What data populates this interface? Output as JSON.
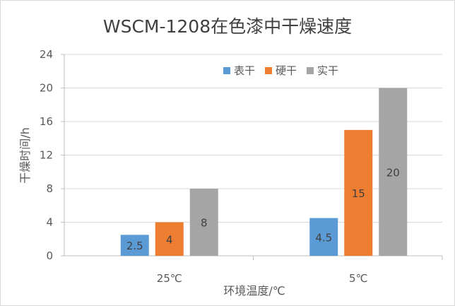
{
  "chart_data": {
    "type": "bar",
    "title": "WSCM-1208在色漆中干燥速度",
    "xlabel": "环境温度/℃",
    "ylabel": "干燥时间/h",
    "categories": [
      "25℃",
      "5℃"
    ],
    "ylim": [
      0,
      24
    ],
    "yticks": [
      0,
      4,
      8,
      12,
      16,
      20,
      24
    ],
    "grid": true,
    "legend_position": "top-right",
    "series": [
      {
        "name": "表干",
        "color": "#5B9BD5",
        "values": [
          2.5,
          4.5
        ],
        "labels": [
          "2.5",
          "4.5"
        ]
      },
      {
        "name": "硬干",
        "color": "#ED7D31",
        "values": [
          4,
          15
        ],
        "labels": [
          "4",
          "15"
        ]
      },
      {
        "name": "实干",
        "color": "#A5A5A5",
        "values": [
          8,
          20
        ],
        "labels": [
          "8",
          "20"
        ]
      }
    ]
  }
}
